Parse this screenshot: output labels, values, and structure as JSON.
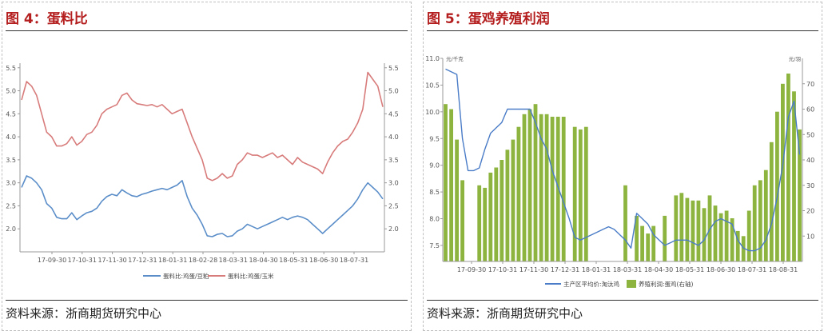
{
  "left_panel": {
    "title": "图 4：蛋料比",
    "source": "资料来源：浙商期货研究中心"
  },
  "right_panel": {
    "title": "图 5：蛋鸡养殖利润",
    "source": "资料来源：浙商期货研究中心"
  },
  "colors": {
    "title_red": "#b41e1e",
    "corn_line": "#d87b7b",
    "meal_line": "#5b8ec9",
    "price_line": "#4a7cc7",
    "profit_bar": "#8db43f"
  },
  "chart_data": [
    {
      "type": "line",
      "x_tick_labels": [
        "17-09-30",
        "17-10-31",
        "17-11-30",
        "17-12-31",
        "18-01-31",
        "18-02-28",
        "18-03-31",
        "18-04-30",
        "18-05-31",
        "18-06-30",
        "18-07-31"
      ],
      "ylim": [
        1.5,
        5.6
      ],
      "y_ticks": [
        2.0,
        2.5,
        3.0,
        3.5,
        4.0,
        4.5,
        5.0,
        5.5
      ],
      "y_tick_labels": [
        "2.0",
        "2.5",
        "3.0",
        "3.5",
        "4.0",
        "4.5",
        "5.0",
        "5.5"
      ],
      "y_right_tick_labels": [
        "2.0",
        "2.5",
        "3.0",
        "3.5",
        "4.0",
        "4.5",
        "5.0",
        "5.5"
      ],
      "grid": false,
      "legend_position": "bottom",
      "series": [
        {
          "name": "蛋料比:鸡蛋/豆粕",
          "values": [
            2.9,
            3.15,
            3.1,
            3.0,
            2.85,
            2.55,
            2.45,
            2.25,
            2.22,
            2.22,
            2.35,
            2.2,
            2.28,
            2.35,
            2.38,
            2.45,
            2.6,
            2.7,
            2.75,
            2.72,
            2.85,
            2.78,
            2.72,
            2.7,
            2.75,
            2.78,
            2.82,
            2.85,
            2.88,
            2.85,
            2.9,
            2.95,
            3.05,
            2.7,
            2.45,
            2.3,
            2.1,
            1.85,
            1.83,
            1.88,
            1.9,
            1.83,
            1.85,
            1.95,
            2.0,
            2.1,
            2.05,
            2.0,
            2.05,
            2.1,
            2.15,
            2.2,
            2.25,
            2.2,
            2.25,
            2.28,
            2.25,
            2.2,
            2.1,
            2.0,
            1.9,
            2.0,
            2.1,
            2.2,
            2.3,
            2.4,
            2.5,
            2.65,
            2.85,
            3.0,
            2.9,
            2.8,
            2.65
          ]
        },
        {
          "name": "蛋料比:鸡蛋/玉米",
          "values": [
            4.8,
            5.2,
            5.1,
            4.9,
            4.5,
            4.1,
            4.0,
            3.8,
            3.8,
            3.85,
            4.0,
            3.82,
            3.9,
            4.05,
            4.1,
            4.25,
            4.5,
            4.6,
            4.65,
            4.7,
            4.9,
            4.95,
            4.8,
            4.72,
            4.7,
            4.68,
            4.7,
            4.65,
            4.7,
            4.6,
            4.5,
            4.55,
            4.6,
            4.3,
            4.0,
            3.75,
            3.5,
            3.1,
            3.05,
            3.1,
            3.2,
            3.1,
            3.15,
            3.4,
            3.5,
            3.65,
            3.6,
            3.6,
            3.55,
            3.6,
            3.65,
            3.55,
            3.6,
            3.5,
            3.4,
            3.55,
            3.45,
            3.4,
            3.35,
            3.3,
            3.2,
            3.45,
            3.65,
            3.8,
            3.9,
            3.95,
            4.1,
            4.3,
            4.6,
            5.4,
            5.25,
            5.1,
            4.65
          ]
        }
      ]
    },
    {
      "type": "bar",
      "x_tick_labels": [
        "17-09-30",
        "17-10-31",
        "17-11-30",
        "17-12-31",
        "18-01-31",
        "18-03-31",
        "18-04-30",
        "18-05-31",
        "18-06-30",
        "18-07-31",
        "18-08-31"
      ],
      "ylim_left": [
        7.2,
        11.0
      ],
      "y_left_ticks": [
        7.5,
        8.0,
        8.5,
        9.0,
        9.5,
        10.0,
        10.5,
        11.0
      ],
      "y_left_tick_labels": [
        "7.5",
        "8.0",
        "8.5",
        "9.0",
        "9.5",
        "10.0",
        "10.5",
        "11.0"
      ],
      "ylim_right": [
        0,
        80
      ],
      "y_right_ticks": [
        10,
        20,
        30,
        40,
        50,
        60,
        70
      ],
      "y_right_tick_labels": [
        "10",
        "20",
        "30",
        "40",
        "50",
        "60",
        "70"
      ],
      "y_left_unit": "元/千克",
      "y_right_unit": "元/羽",
      "grid": false,
      "legend_position": "bottom",
      "bar_series": {
        "name": "养殖利润:蛋鸡(右轴)",
        "values": [
          62,
          60,
          48,
          32,
          null,
          null,
          30,
          29,
          35,
          37,
          40,
          44,
          48,
          53,
          58,
          60,
          62,
          58,
          58,
          57,
          57,
          57,
          null,
          53,
          52,
          53,
          null,
          null,
          null,
          null,
          null,
          null,
          30,
          null,
          18,
          14,
          11,
          14,
          null,
          18,
          null,
          26,
          27,
          25,
          24,
          24,
          21,
          26,
          22,
          19,
          20,
          17,
          12,
          10,
          20,
          30,
          32,
          36,
          47,
          59,
          70,
          74,
          67,
          52
        ]
      },
      "line_series": {
        "name": "主产区平均价:淘汰鸡",
        "values": [
          10.8,
          10.75,
          10.7,
          9.5,
          8.9,
          8.9,
          8.95,
          9.3,
          9.6,
          9.7,
          9.8,
          10.05,
          10.05,
          10.05,
          10.05,
          10.05,
          9.8,
          9.5,
          9.3,
          8.9,
          8.6,
          8.3,
          8.0,
          7.65,
          7.6,
          7.65,
          7.7,
          7.75,
          7.8,
          7.85,
          7.8,
          7.7,
          7.6,
          7.45,
          8.1,
          8.0,
          7.9,
          7.7,
          7.6,
          7.5,
          7.55,
          7.6,
          7.6,
          7.6,
          7.55,
          7.5,
          7.6,
          7.8,
          7.95,
          8.0,
          7.95,
          7.9,
          7.6,
          7.45,
          7.4,
          7.4,
          7.45,
          7.6,
          7.9,
          8.4,
          9.0,
          9.9,
          10.2,
          9.2
        ]
      }
    }
  ]
}
